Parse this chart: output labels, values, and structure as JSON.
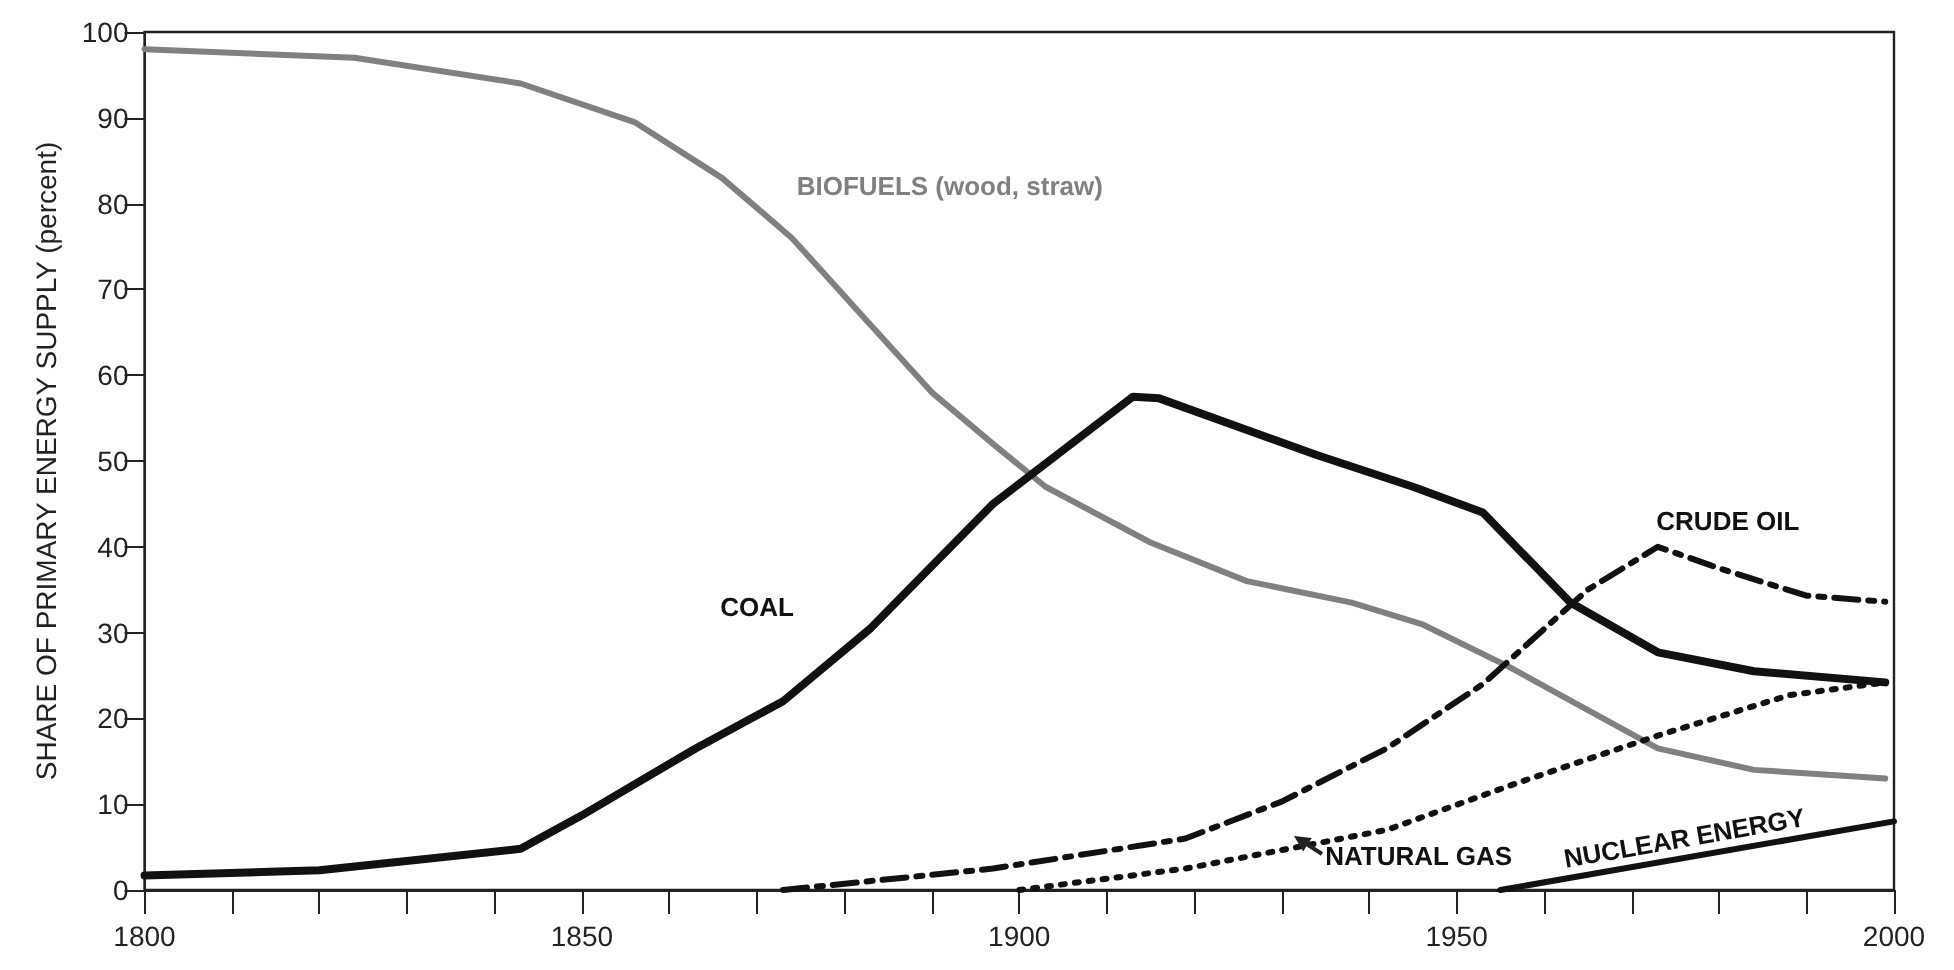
{
  "chart_data": {
    "type": "line",
    "ylabel": "SHARE OF PRIMARY ENERGY SUPPLY (percent)",
    "xlim": [
      1800,
      2000
    ],
    "xticks": [
      1800,
      {
        "value": 1810,
        "label": null
      },
      {
        "value": 1820,
        "label": null
      },
      {
        "value": 1830,
        "label": null
      },
      {
        "value": 1840,
        "label": null
      },
      1850,
      {
        "value": 1860,
        "label": null
      },
      {
        "value": 1870,
        "label": null
      },
      {
        "value": 1880,
        "label": null
      },
      {
        "value": 1890,
        "label": null
      },
      1900,
      {
        "value": 1910,
        "label": null
      },
      {
        "value": 1920,
        "label": null
      },
      {
        "value": 1930,
        "label": null
      },
      {
        "value": 1940,
        "label": null
      },
      1950,
      {
        "value": 1960,
        "label": null
      },
      {
        "value": 1970,
        "label": null
      },
      {
        "value": 1980,
        "label": null
      },
      {
        "value": 1990,
        "label": null
      },
      2000
    ],
    "ylim": [
      0,
      100
    ],
    "yticks": [
      0,
      10,
      20,
      30,
      40,
      50,
      60,
      70,
      80,
      90,
      100
    ],
    "grid": false,
    "legend": false,
    "marker": "none",
    "series": [
      {
        "name": "BIOFUELS (wood, straw)",
        "color": "#808080",
        "line_style": "solid",
        "x": [
          1800,
          1824,
          1843,
          1856,
          1866,
          1874,
          1882,
          1890,
          1897,
          1903,
          1915,
          1926,
          1938,
          1946,
          1956,
          1973,
          1984,
          1999
        ],
        "values": [
          98,
          97,
          94,
          89.5,
          83,
          76,
          67,
          58,
          52,
          47,
          40.5,
          36,
          33.5,
          31,
          26,
          16.5,
          14,
          13
        ]
      },
      {
        "name": "COAL",
        "color": "#111111",
        "line_style": "solid",
        "x": [
          1800,
          1820,
          1843,
          1850,
          1863,
          1873,
          1883,
          1897,
          1913,
          1916,
          1925,
          1934,
          1945,
          1953,
          1963,
          1973,
          1984,
          1999
        ],
        "values": [
          1.7,
          2.3,
          4.8,
          8.7,
          16.5,
          22,
          30.5,
          45,
          57.5,
          57.3,
          54,
          50.7,
          47,
          44,
          33.5,
          27.7,
          25.5,
          24.2
        ]
      },
      {
        "name": "CRUDE OIL",
        "color": "#111111",
        "line_style": "dashed",
        "x": [
          1873,
          1897,
          1919,
          1930,
          1942,
          1953,
          1965,
          1973,
          1980,
          1990,
          1999
        ],
        "values": [
          0,
          2.5,
          6,
          10.3,
          16.5,
          24,
          35,
          40,
          37.5,
          34.3,
          33.6
        ]
      },
      {
        "name": "NATURAL GAS",
        "color": "#111111",
        "line_style": "dotted",
        "x": [
          1900,
          1919,
          1942,
          1957,
          1973,
          1988,
          1999
        ],
        "values": [
          0,
          2.5,
          7,
          12.5,
          18,
          22.7,
          24.2
        ]
      },
      {
        "name": "NUCLEAR ENERGY",
        "color": "#111111",
        "line_style": "solid",
        "x": [
          1955,
          2000
        ],
        "values": [
          0,
          8
        ]
      }
    ]
  }
}
